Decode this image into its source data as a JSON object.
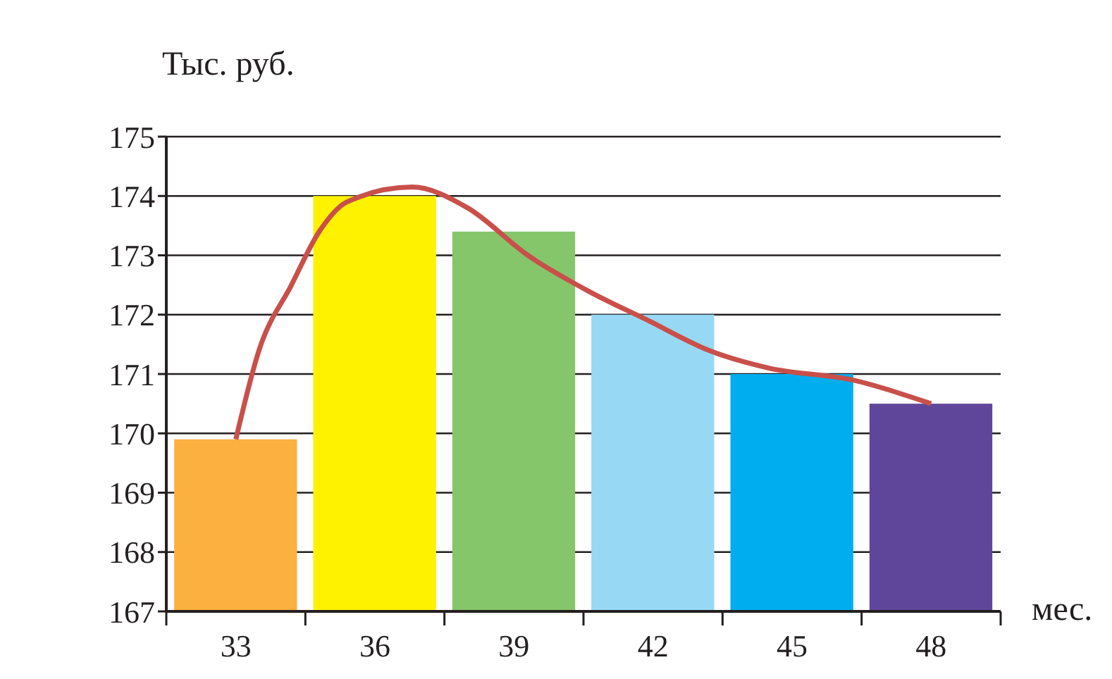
{
  "chart_data": {
    "type": "bar",
    "ylabel": "Тыс. руб.",
    "xlabel": "мес.",
    "x": [
      33,
      36,
      39,
      42,
      45,
      48
    ],
    "xlim": [
      31.5,
      49.5
    ],
    "xticks": [
      {
        "value": 31.5,
        "label": null
      },
      33,
      {
        "value": 34.5,
        "label": null
      },
      36,
      {
        "value": 37.5,
        "label": null
      },
      39,
      {
        "value": 40.5,
        "label": null
      },
      42,
      {
        "value": 43.5,
        "label": null
      },
      45,
      {
        "value": 46.5,
        "label": null
      },
      48,
      {
        "value": 49.5,
        "label": null
      }
    ],
    "ylim": [
      167,
      175
    ],
    "yticks": [
      167,
      168,
      169,
      170,
      171,
      172,
      173,
      174,
      175
    ],
    "grid": "y",
    "series": [
      {
        "colors": [
          "#fbb040",
          "#fff200",
          "#86c66b",
          "#97d8f5",
          "#00aeef",
          "#60469b"
        ],
        "values": [
          169.9,
          174.0,
          173.4,
          172.0,
          171.0,
          170.5
        ]
      },
      {
        "type": "line",
        "color": "#c9504a",
        "x": [
          33,
          33.5,
          34.2,
          34.8,
          35.4,
          36.8,
          38,
          39.3,
          40.6,
          41.9,
          43.2,
          44.5,
          46.3,
          48
        ],
        "values": [
          169.9,
          171.4,
          172.5,
          173.4,
          173.9,
          174.15,
          173.8,
          173.0,
          172.4,
          171.9,
          171.4,
          171.1,
          170.9,
          170.5
        ]
      }
    ]
  }
}
